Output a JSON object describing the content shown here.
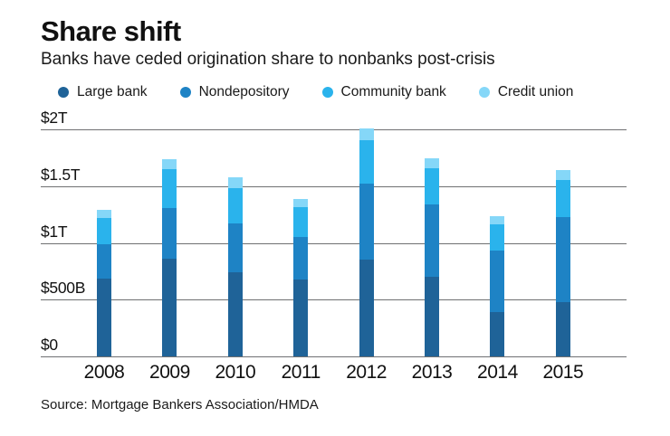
{
  "header": {
    "title": "Share shift",
    "subtitle": "Banks have ceded origination share to nonbanks post-crisis"
  },
  "legend": [
    {
      "label": "Large bank",
      "color": "#1f6398"
    },
    {
      "label": "Nondepository",
      "color": "#1e83c5"
    },
    {
      "label": "Community bank",
      "color": "#2ab3ec"
    },
    {
      "label": "Credit union",
      "color": "#85d7f8"
    }
  ],
  "chart_data": {
    "type": "bar",
    "stacked": true,
    "title": "Share shift",
    "subtitle": "Banks have ceded origination share to nonbanks post-crisis",
    "units": "billions USD",
    "categories": [
      "2008",
      "2009",
      "2010",
      "2011",
      "2012",
      "2013",
      "2014",
      "2015"
    ],
    "series": [
      {
        "name": "Large bank",
        "color": "#1f6398",
        "values": [
          685,
          860,
          745,
          675,
          855,
          705,
          390,
          480
        ]
      },
      {
        "name": "Nondepository",
        "color": "#1e83c5",
        "values": [
          300,
          445,
          430,
          380,
          665,
          630,
          540,
          745
        ]
      },
      {
        "name": "Community bank",
        "color": "#2ab3ec",
        "values": [
          235,
          345,
          310,
          260,
          385,
          320,
          235,
          330
        ]
      },
      {
        "name": "Credit union",
        "color": "#85d7f8",
        "values": [
          70,
          90,
          90,
          75,
          100,
          90,
          70,
          90
        ]
      }
    ],
    "totals": [
      1290,
      1740,
      1575,
      1390,
      2005,
      1745,
      1235,
      1645
    ],
    "ylim": [
      0,
      2000
    ],
    "yticks": [
      {
        "label": "$2T",
        "value": 2000
      },
      {
        "label": "$1.5T",
        "value": 1500
      },
      {
        "label": "$1T",
        "value": 1000
      },
      {
        "label": "$500B",
        "value": 500
      },
      {
        "label": "$0",
        "value": 0
      }
    ],
    "grid": true,
    "legend_position": "top"
  },
  "source": "Source: Mortgage Bankers Association/HMDA"
}
